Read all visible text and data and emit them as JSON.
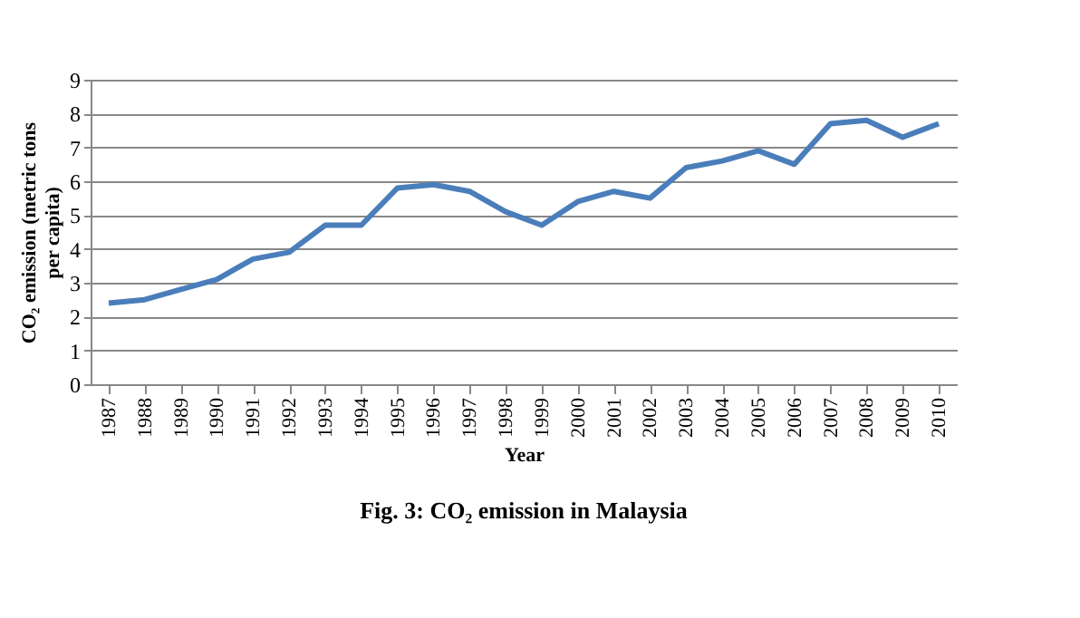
{
  "chart_data": {
    "type": "line",
    "title": "Fig. 3: CO₂ emission in Malaysia",
    "xlabel": "Year",
    "ylabel": "CO₂ emission (metric tons per capita)",
    "categories": [
      "1987",
      "1988",
      "1989",
      "1990",
      "1991",
      "1992",
      "1993",
      "1994",
      "1995",
      "1996",
      "1997",
      "1998",
      "1999",
      "2000",
      "2001",
      "2002",
      "2003",
      "2004",
      "2005",
      "2006",
      "2007",
      "2008",
      "2009",
      "2010"
    ],
    "series": [
      {
        "color": "#4a7ebb",
        "values": [
          2.4,
          2.5,
          2.8,
          3.1,
          3.7,
          3.9,
          4.7,
          4.7,
          5.8,
          5.9,
          5.7,
          5.1,
          4.7,
          5.4,
          5.7,
          5.5,
          6.4,
          6.6,
          6.9,
          6.5,
          7.7,
          7.8,
          7.3,
          7.7
        ]
      }
    ],
    "ylim": [
      0,
      9
    ],
    "yticks": [
      0,
      1,
      2,
      3,
      4,
      5,
      6,
      7,
      8,
      9
    ],
    "grid": "y",
    "marker": "none",
    "line_style": "solid"
  }
}
